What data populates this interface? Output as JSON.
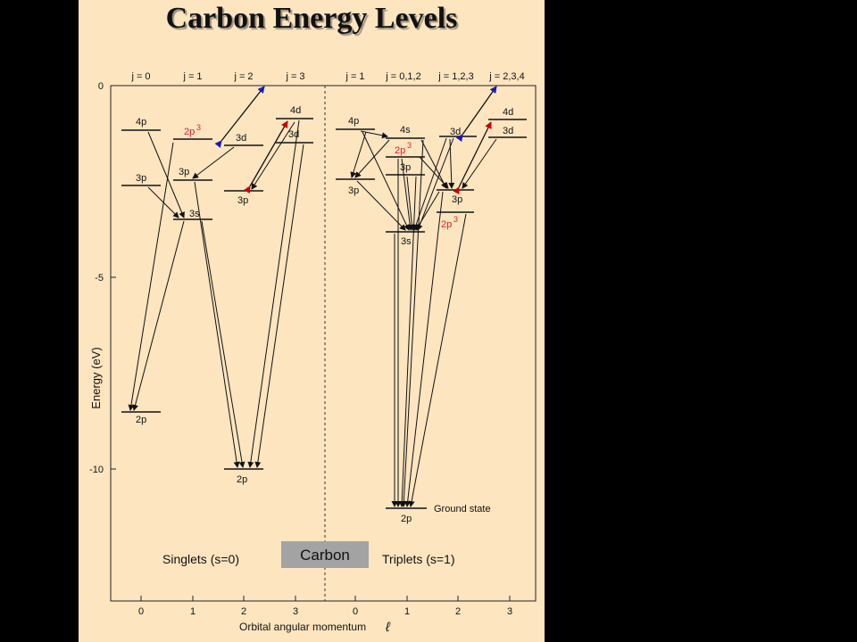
{
  "title": "Carbon Energy Levels",
  "y_axis": {
    "label": "Energy (eV)",
    "ticks": [
      "0",
      "-5",
      "-10"
    ]
  },
  "x_axis": {
    "label": "Orbital angular momentum",
    "symbol": "ℓ",
    "singlet_ticks": [
      "0",
      "1",
      "2",
      "3"
    ],
    "triplet_ticks": [
      "0",
      "1",
      "2",
      "3"
    ]
  },
  "j_labels": [
    "j = 0",
    "j = 1",
    "j = 2",
    "j = 3",
    "j = 1",
    "j = 0,1,2",
    "j = 1,2,3",
    "j = 2,3,4"
  ],
  "level_labels": {
    "s_4p": "4p",
    "s_2p3": "2p",
    "s_2p3_sup": "3",
    "s_3d": "3d",
    "s_4d": "4d",
    "s_3d3": "3d",
    "s_3p_l0": "3p",
    "s_3p_l1": "3p",
    "s_3p_l2": "3p",
    "s_3s": "3s",
    "s_2p_l0": "2p",
    "s_2p_l2": "2p",
    "t_4p": "4p",
    "t_4s": "4s",
    "t_3d": "3d",
    "t_4d": "4d",
    "t_3d3": "3d",
    "t_2p3": "2p",
    "t_2p3_sup": "3",
    "t_3p_l1": "3p",
    "t_3p_l0": "3p",
    "t_3p_l2": "3p",
    "t_2p3b": "2p",
    "t_2p3b_sup": "3",
    "t_3s": "3s",
    "t_2p_ground": "2p"
  },
  "ground_state_label": "Ground state",
  "singlets_label": "Singlets (s=0)",
  "triplets_label": "Triplets (s=1)",
  "carbon_label": "Carbon",
  "colors": {
    "background": "#fde5c0",
    "highlight_red": "#e8192c",
    "arrow_red": "#cc0000",
    "arrow_blue": "#1a1aaa",
    "carbon_box": "#a3a3a3"
  }
}
